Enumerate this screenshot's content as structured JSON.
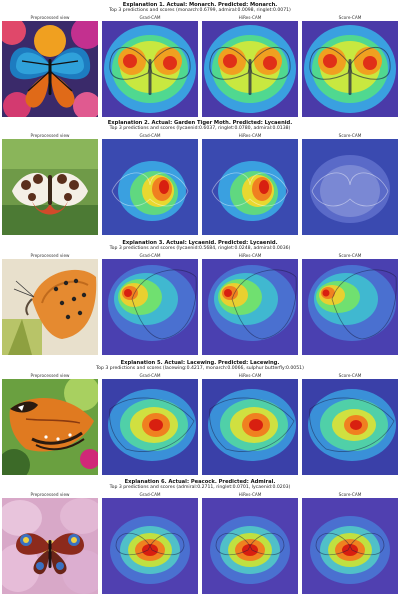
{
  "columns": [
    "Preprocessed view",
    "Grad-CAM",
    "HiRes-CAM",
    "Score-CAM"
  ],
  "explanations": [
    {
      "title": "Explanation 1. Actual: Monarch. Predicted: Monarch.",
      "subtitle": "Top 3 predictions and scores (monarch:0.6799, admiral:0.0098, ringlet:0.0071)",
      "image": "monarch-butterfly-on-orange-flower"
    },
    {
      "title": "Explanation 2. Actual: Garden Tiger Moth. Predicted: Lycaenid.",
      "subtitle": "Top 3 predictions and scores (lycaenid:0.6037, ringlet:0.0780, admiral:0.0138)",
      "image": "garden-tiger-moth-on-leaf"
    },
    {
      "title": "Explanation 3. Actual: Lycaenid. Predicted: Lycaenid.",
      "subtitle": "Top 3 predictions and scores (lycaenid:0.5684, ringlet:0.0248, admiral:0.0036)",
      "image": "lycaenid-butterfly-on-plant"
    },
    {
      "title": "Explanation 5. Actual: Lacewing. Predicted: Lacewing.",
      "subtitle": "Top 3 predictions and scores (lacewing:0.4217, monarch:0.0066, sulphur butterfly:0.0051)",
      "image": "lacewing-butterfly-on-green"
    },
    {
      "title": "Explanation 6. Actual: Peacock. Predicted: Admiral.",
      "subtitle": "Top 3 predictions and scores (admiral:0.2711, ringlet:0.0701, lycaenid:0.0203)",
      "image": "peacock-butterfly-on-pink-flower"
    }
  ]
}
